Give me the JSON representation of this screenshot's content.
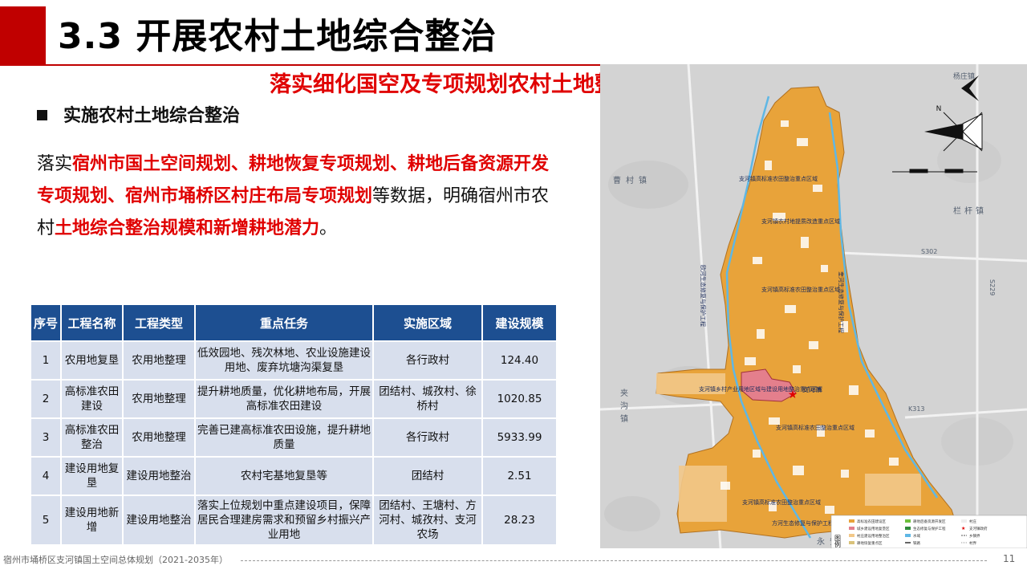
{
  "header": {
    "title": "3.3 开展农村土地综合整治",
    "subtitle": "落实细化国空及专项规划农村土地整治数据"
  },
  "section": {
    "heading": "实施农村土地综合整治"
  },
  "paragraph": {
    "p1": "落实",
    "e1": "宿州市国土空间规划、耕地恢复专项规划、耕地后备资源开发专项规划、宿州市埇桥区村庄布局专项规划",
    "p2": "等数据，明确宿州市农村",
    "e2": "土地综合整治规模和新增耕地潜力",
    "p3": "。"
  },
  "table": {
    "headers": [
      "序号",
      "工程名称",
      "工程类型",
      "重点任务",
      "实施区域",
      "建设规模"
    ],
    "rows": [
      {
        "no": "1",
        "name": "农用地复垦",
        "type": "农用地整理",
        "task": "低效园地、残次林地、农业设施建设用地、废弃坑塘沟渠复垦",
        "area": "各行政村",
        "scale": "124.40"
      },
      {
        "no": "2",
        "name": "高标准农田建设",
        "type": "农用地整理",
        "task": "提升耕地质量，优化耕地布局，开展高标准农田建设",
        "area": "团结村、城孜村、徐桥村",
        "scale": "1020.85"
      },
      {
        "no": "3",
        "name": "高标准农田整治",
        "type": "农用地整理",
        "task": "完善已建高标准农田设施，提升耕地质量",
        "area": "各行政村",
        "scale": "5933.99"
      },
      {
        "no": "4",
        "name": "建设用地复垦",
        "type": "建设用地整治",
        "task": "农村宅基地复垦等",
        "area": "团结村",
        "scale": "2.51"
      },
      {
        "no": "5",
        "name": "建设用地新增",
        "type": "建设用地整治",
        "task": "落实上位规划中重点建设项目，保障居民合理建房需求和预留乡村振兴产业用地",
        "area": "团结村、王塘村、方河村、城孜村、支河农场",
        "scale": "28.23"
      }
    ]
  },
  "map": {
    "towns": [
      "曹村镇",
      "栏杆镇",
      "夹沟镇",
      "永安镇",
      "杨庄镇"
    ],
    "roads": [
      "S302",
      "S229",
      "K313"
    ],
    "zones": [
      "支河镇高标准农田整治重点区域",
      "支河镇农村地提质改造重点区域",
      "支河镇高标准农田整治重点区域",
      "支河镇高标准农田整治重点区域",
      "支河镇乡村产业用地区域与建设用地整治重点区域",
      "支河镇高标准农田整治重点区域"
    ],
    "corridors": [
      "欧河生态修复与保护工程",
      "奎河生态修复与保护工程",
      "方河生态修复与保护工程"
    ],
    "town_center": "支河镇",
    "compass": "N",
    "legend_title": "图例",
    "legend_items": [
      "高标准农田建设区",
      "耕地后备资源开发区",
      "村庄",
      "城乡建设用地复垦区",
      "生态修复与保护工程",
      "支河镇政府",
      "村庄建设用地整治区",
      "水域",
      "乡镇界",
      "耕地恢复重点区",
      "铁路",
      "村界"
    ],
    "colors": {
      "farmland": "#e8a33a",
      "background": "#d3d3d3",
      "water": "#5fb7e5",
      "redzone": "#e47f8c",
      "white": "#ffffff"
    }
  },
  "footer": {
    "text": "宿州市埇桥区支河镇国土空间总体规划（2021-2035年）",
    "page": "11"
  }
}
